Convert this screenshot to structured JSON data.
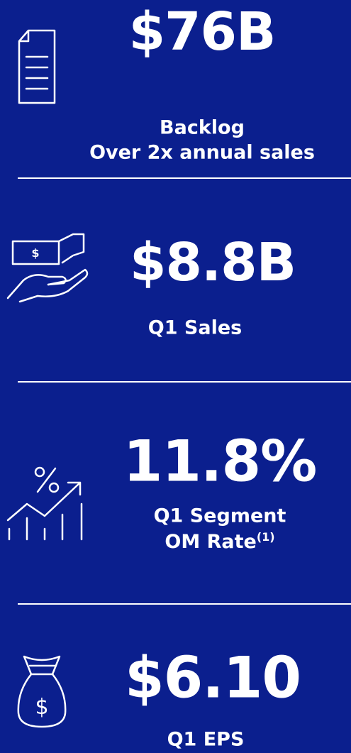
{
  "metrics": [
    {
      "value": "$76B",
      "label": [
        "Backlog",
        "Over 2x annual sales"
      ]
    },
    {
      "value": "$8.8B",
      "label": [
        "Q1 Sales"
      ]
    },
    {
      "value": "11.8%",
      "label": [
        "Q1 Segment",
        "OM Rate"
      ],
      "footnote": "(1)"
    },
    {
      "value": "$6.10",
      "label": [
        "Q1 EPS"
      ]
    }
  ]
}
